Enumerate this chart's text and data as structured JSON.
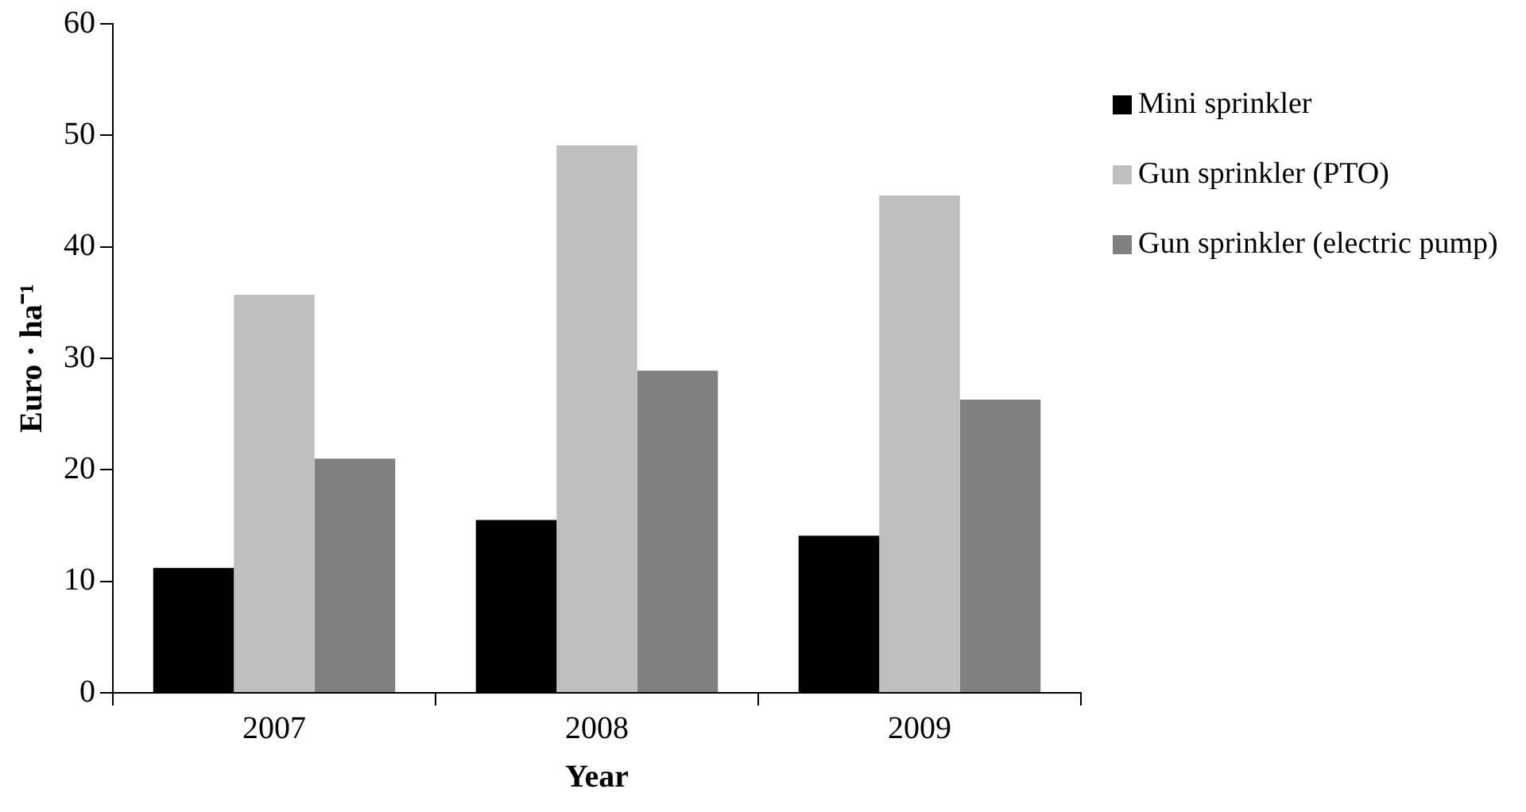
{
  "chart_data": {
    "type": "bar",
    "xlabel": "Year",
    "ylabel": "Euro · ha⁻¹",
    "categories": [
      "2007",
      "2008",
      "2009"
    ],
    "series": [
      {
        "name": "Mini sprinkler",
        "color": "#000000",
        "values": [
          11.2,
          15.5,
          14.1
        ]
      },
      {
        "name": "Gun sprinkler (PTO)",
        "color": "#bfbfbf",
        "values": [
          35.7,
          49.1,
          44.6
        ]
      },
      {
        "name": "Gun sprinkler (electric pump)",
        "color": "#808080",
        "values": [
          21.0,
          28.9,
          26.3
        ]
      }
    ],
    "ylim": [
      0,
      60
    ],
    "yticks": [
      0,
      10,
      20,
      30,
      40,
      50,
      60
    ],
    "grid": false,
    "legend": "right"
  }
}
